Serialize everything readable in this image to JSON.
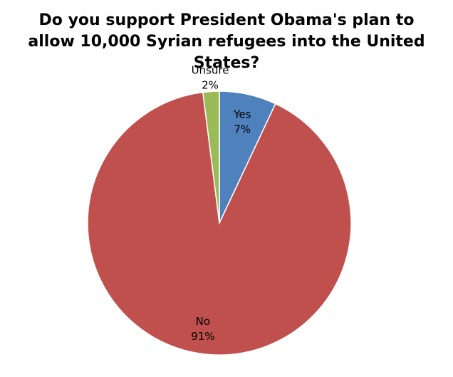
{
  "chart_data": {
    "type": "pie",
    "title": "Do you support President Obama's plan to allow 10,000 Syrian refugees into the United States?",
    "categories": [
      "Yes",
      "No",
      "Unsure"
    ],
    "values": [
      7,
      91,
      2
    ],
    "value_labels": [
      "7%",
      "91%",
      "2%"
    ],
    "colors": [
      "#4f81bd",
      "#c0504d",
      "#9bbb59"
    ]
  }
}
